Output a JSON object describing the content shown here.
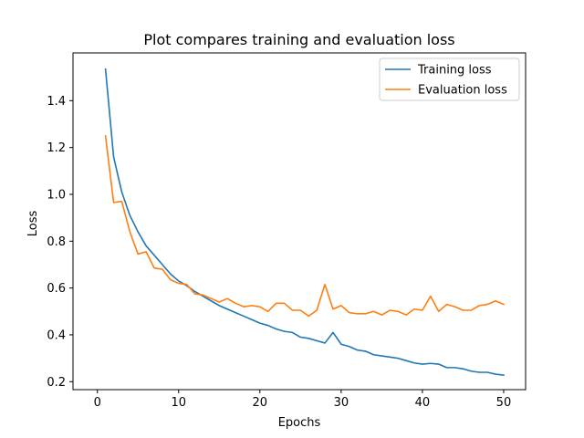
{
  "chart_data": {
    "type": "line",
    "title": "Plot compares training and evaluation loss",
    "xlabel": "Epochs",
    "ylabel": "Loss",
    "xlim": [
      -3.0,
      52.7
    ],
    "ylim": [
      0.166,
      1.604
    ],
    "xticks": [
      0,
      10,
      20,
      30,
      40,
      50
    ],
    "yticks": [
      0.2,
      0.4,
      0.6,
      0.8,
      1.0,
      1.2,
      1.4
    ],
    "ytick_labels": [
      "0.2",
      "0.4",
      "0.6",
      "0.8",
      "1.0",
      "1.2",
      "1.4"
    ],
    "legend_position": "top-right",
    "grid": false,
    "x": [
      1,
      2,
      3,
      4,
      5,
      6,
      7,
      8,
      9,
      10,
      11,
      12,
      13,
      14,
      15,
      16,
      17,
      18,
      19,
      20,
      21,
      22,
      23,
      24,
      25,
      26,
      27,
      28,
      29,
      30,
      31,
      32,
      33,
      34,
      35,
      36,
      37,
      38,
      39,
      40,
      41,
      42,
      43,
      44,
      45,
      46,
      47,
      48,
      49,
      50
    ],
    "series": [
      {
        "name": "Training loss",
        "color": "#1f77b4",
        "values": [
          1.535,
          1.16,
          1.01,
          0.91,
          0.84,
          0.78,
          0.74,
          0.7,
          0.66,
          0.63,
          0.61,
          0.585,
          0.565,
          0.545,
          0.525,
          0.51,
          0.495,
          0.48,
          0.465,
          0.45,
          0.44,
          0.425,
          0.415,
          0.41,
          0.39,
          0.385,
          0.375,
          0.365,
          0.41,
          0.36,
          0.35,
          0.335,
          0.33,
          0.315,
          0.31,
          0.305,
          0.3,
          0.29,
          0.28,
          0.275,
          0.278,
          0.275,
          0.26,
          0.26,
          0.255,
          0.245,
          0.24,
          0.24,
          0.232,
          0.228
        ]
      },
      {
        "name": "Evaluation loss",
        "color": "#ff7f0e",
        "values": [
          1.25,
          0.965,
          0.97,
          0.84,
          0.745,
          0.755,
          0.685,
          0.68,
          0.635,
          0.62,
          0.615,
          0.575,
          0.57,
          0.555,
          0.54,
          0.555,
          0.535,
          0.52,
          0.525,
          0.52,
          0.5,
          0.535,
          0.535,
          0.505,
          0.505,
          0.48,
          0.505,
          0.615,
          0.51,
          0.525,
          0.495,
          0.49,
          0.49,
          0.5,
          0.485,
          0.505,
          0.5,
          0.485,
          0.51,
          0.505,
          0.565,
          0.5,
          0.53,
          0.52,
          0.505,
          0.505,
          0.525,
          0.53,
          0.545,
          0.53
        ]
      }
    ]
  }
}
